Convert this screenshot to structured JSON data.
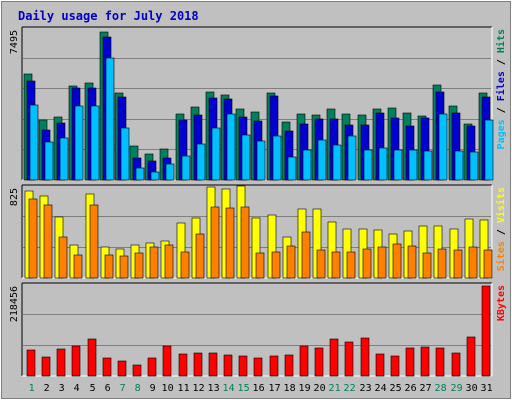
{
  "chart_data": {
    "type": "bar",
    "title": "Daily usage for July 2018",
    "categories": [
      "1",
      "2",
      "3",
      "4",
      "5",
      "6",
      "7",
      "8",
      "9",
      "10",
      "11",
      "12",
      "13",
      "14",
      "15",
      "16",
      "17",
      "18",
      "19",
      "20",
      "21",
      "22",
      "23",
      "24",
      "25",
      "26",
      "27",
      "28",
      "29",
      "30",
      "31"
    ],
    "weekend_days": [
      1,
      7,
      8,
      14,
      15,
      21,
      22,
      28,
      29
    ],
    "panels": [
      {
        "id": "traffic",
        "ymax_label": "7495",
        "ymax": 7495,
        "right_labels": [
          {
            "text": "Pages",
            "color": "#00c0ff"
          },
          {
            "text": " / ",
            "color": "#000000"
          },
          {
            "text": "Files",
            "color": "#0000d0"
          },
          {
            "text": " / ",
            "color": "#000000"
          },
          {
            "text": "Hits",
            "color": "#00805c"
          }
        ],
        "series": [
          {
            "name": "Hits",
            "color": "#00805c",
            "values": [
              5300,
              3000,
              3150,
              4700,
              4850,
              7400,
              4350,
              1700,
              1300,
              1550,
              3300,
              3650,
              4400,
              4250,
              3550,
              3400,
              4350,
              2900,
              3300,
              3250,
              3550,
              3300,
              3250,
              3550,
              3600,
              3350,
              3200,
              4750,
              3700,
              2800,
              4350
            ]
          },
          {
            "name": "Files",
            "color": "#0000d0",
            "values": [
              4950,
              2500,
              2850,
              4600,
              4600,
              7150,
              4150,
              1100,
              950,
              1100,
              3000,
              3250,
              4100,
              4050,
              3150,
              2950,
              4200,
              2450,
              2800,
              3050,
              3050,
              2750,
              2750,
              3350,
              3100,
              2700,
              3100,
              4400,
              3350,
              2700,
              4150
            ]
          },
          {
            "name": "Pages",
            "color": "#00c0ff",
            "values": [
              3750,
              1900,
              2100,
              3700,
              3700,
              6100,
              2600,
              600,
              400,
              800,
              1200,
              1800,
              2600,
              3300,
              2250,
              1950,
              2200,
              1150,
              1500,
              2000,
              1750,
              2200,
              1500,
              1600,
              1500,
              1500,
              1450,
              3300,
              1450,
              1400,
              3000
            ]
          }
        ]
      },
      {
        "id": "visits",
        "ymax_label": "825",
        "ymax": 825,
        "right_labels": [
          {
            "text": "Sites",
            "color": "#ff8000"
          },
          {
            "text": " / ",
            "color": "#000000"
          },
          {
            "text": "Visits",
            "color": "#ffff00"
          }
        ],
        "series": [
          {
            "name": "Visits",
            "color": "#ffff00",
            "values": [
              800,
              750,
              560,
              300,
              770,
              280,
              265,
              300,
              325,
              340,
              500,
              550,
              830,
              820,
              840,
              550,
              580,
              380,
              630,
              630,
              510,
              445,
              445,
              440,
              400,
              430,
              475,
              475,
              445,
              545,
              535
            ]
          },
          {
            "name": "Sites",
            "color": "#ff8000",
            "values": [
              720,
              670,
              380,
              210,
              670,
              215,
              205,
              225,
              280,
              305,
              240,
              400,
              655,
              640,
              650,
              225,
              240,
              290,
              420,
              260,
              240,
              235,
              265,
              285,
              315,
              295,
              225,
              265,
              260,
              285,
              260
            ]
          }
        ]
      },
      {
        "id": "kbytes",
        "ymax_label": "218456",
        "ymax": 218456,
        "right_labels": [
          {
            "text": "KBytes",
            "color": "#ff0000"
          }
        ],
        "series": [
          {
            "name": "KBytes",
            "color": "#ff0000",
            "values": [
              62000,
              45000,
              65000,
              73000,
              89000,
              43000,
              37000,
              26000,
              43000,
              74000,
              53000,
              55000,
              55000,
              51000,
              49000,
              44000,
              48000,
              52000,
              74000,
              69000,
              89000,
              83000,
              93000,
              53000,
              48000,
              68000,
              70000,
              67000,
              55000,
              95000,
              218456
            ]
          }
        ]
      }
    ]
  }
}
